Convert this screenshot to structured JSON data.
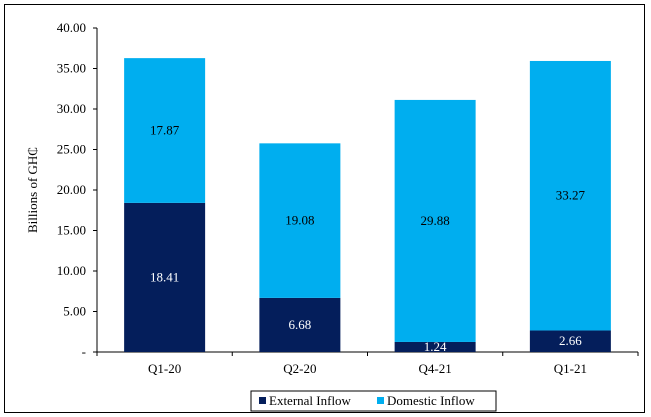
{
  "chart_data": {
    "type": "bar",
    "stacked": true,
    "categories": [
      "Q1-20",
      "Q2-20",
      "Q4-21",
      "Q1-21"
    ],
    "series": [
      {
        "name": "External Inflow",
        "values": [
          18.41,
          6.68,
          1.24,
          2.66
        ],
        "color": "#041E5B",
        "label_color": "#FFFFFF"
      },
      {
        "name": "Domestic Inflow",
        "values": [
          17.87,
          19.08,
          29.88,
          33.27
        ],
        "color": "#00AEEF",
        "label_color": "#000000"
      }
    ],
    "data_labels": {
      "External Inflow": [
        "18.41",
        "6.68",
        "1.24",
        "2.66"
      ],
      "Domestic Inflow": [
        "17.87",
        "19.08",
        "29.88",
        "33.27"
      ]
    },
    "xlabel": "",
    "ylabel": "Billions  of GH₵",
    "ylim": [
      0,
      40
    ],
    "y_ticks": [
      0,
      5,
      10,
      15,
      20,
      25,
      30,
      35,
      40
    ],
    "y_tick_labels": [
      "-",
      "5.00",
      "10.00",
      "15.00",
      "20.00",
      "25.00",
      "30.00",
      "35.00",
      "40.00"
    ],
    "grid": false,
    "legend_position": "bottom"
  }
}
